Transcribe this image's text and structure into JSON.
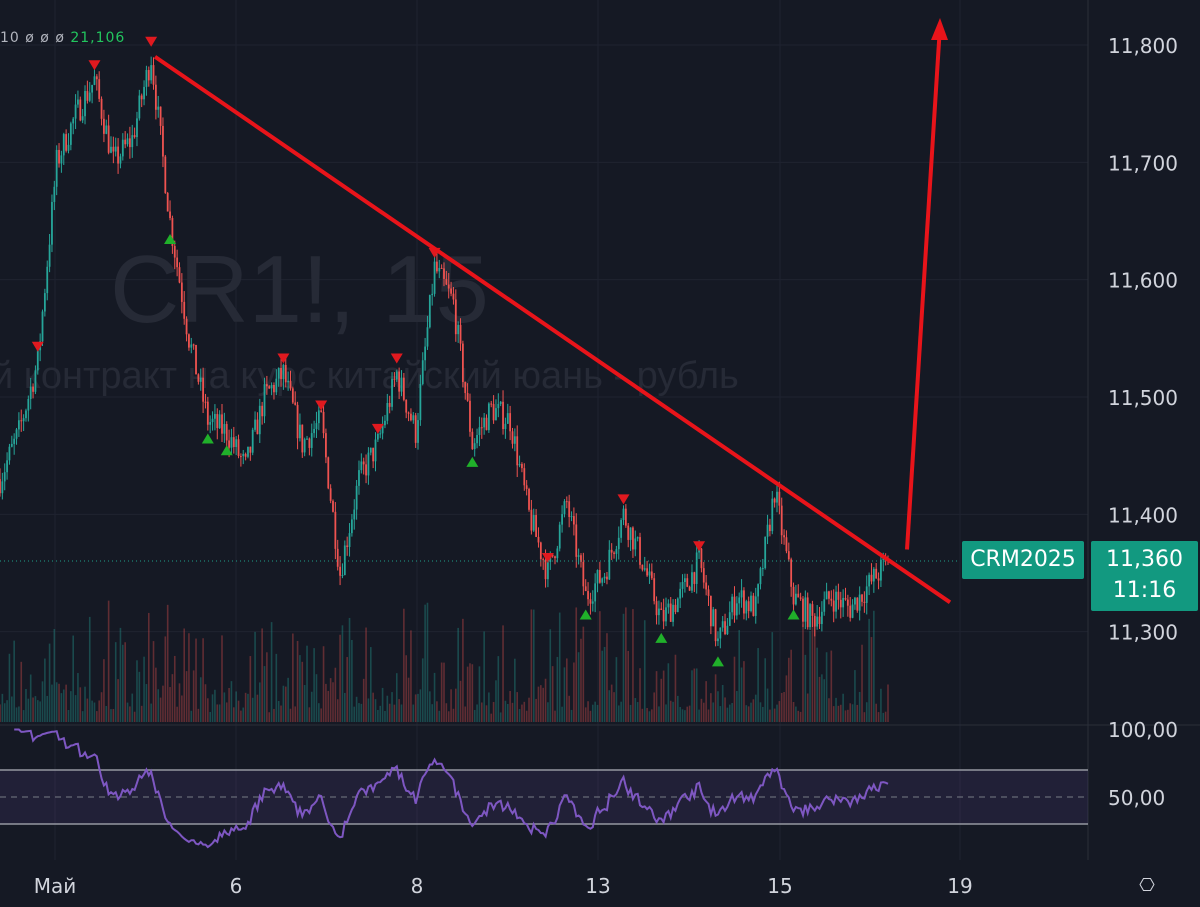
{
  "legend": {
    "prefix": "10",
    "null_values": "ø ø ø",
    "volume": "21,106"
  },
  "watermark": {
    "symbol": "CR1!, 15",
    "description": "й контракт на курс китайский юань - рубль"
  },
  "last_price": {
    "symbol": "CRM2025",
    "price": "11,360",
    "countdown": "11:16"
  },
  "colors": {
    "background": "#151924",
    "up": "#26a69a",
    "down": "#ef5350",
    "annotation": "#e8141a",
    "rsi": "#7e57c2",
    "badge": "#129980"
  },
  "icons": {
    "settings": "gear-icon"
  },
  "chart_data": [
    {
      "type": "candlestick",
      "price_axis": {
        "ticks": [
          "11,800",
          "11,700",
          "11,600",
          "11,500",
          "11,400",
          "11,300"
        ],
        "tick_values": [
          11800,
          11700,
          11600,
          11500,
          11400,
          11300
        ]
      },
      "time_axis": {
        "ticks": [
          "Май",
          "6",
          "8",
          "13",
          "15",
          "19"
        ]
      },
      "grid": true,
      "close_keypoints": [
        11430,
        11470,
        11530,
        11700,
        11740,
        11770,
        11700,
        11720,
        11790,
        11650,
        11550,
        11480,
        11470,
        11440,
        11500,
        11520,
        11460,
        11480,
        11350,
        11430,
        11460,
        11520,
        11470,
        11610,
        11580,
        11460,
        11490,
        11480,
        11400,
        11350,
        11410,
        11330,
        11350,
        11400,
        11360,
        11310,
        11330,
        11360,
        11290,
        11330,
        11320,
        11420,
        11330,
        11310,
        11330,
        11320,
        11340,
        11360
      ],
      "last_value": 11360,
      "signals": [
        {
          "k": 2,
          "type": "sell"
        },
        {
          "k": 5,
          "type": "sell"
        },
        {
          "k": 8,
          "type": "sell"
        },
        {
          "k": 9,
          "type": "buy"
        },
        {
          "k": 11,
          "type": "buy"
        },
        {
          "k": 12,
          "type": "buy"
        },
        {
          "k": 15,
          "type": "sell"
        },
        {
          "k": 17,
          "type": "sell"
        },
        {
          "k": 20,
          "type": "sell"
        },
        {
          "k": 21,
          "type": "sell"
        },
        {
          "k": 23,
          "type": "sell"
        },
        {
          "k": 25,
          "type": "buy"
        },
        {
          "k": 29,
          "type": "sell"
        },
        {
          "k": 31,
          "type": "buy"
        },
        {
          "k": 33,
          "type": "sell"
        },
        {
          "k": 35,
          "type": "buy"
        },
        {
          "k": 37,
          "type": "sell"
        },
        {
          "k": 38,
          "type": "buy"
        },
        {
          "k": 42,
          "type": "buy"
        }
      ],
      "annotations": [
        {
          "type": "trendline",
          "from_price": 11790,
          "to_price": 11325
        },
        {
          "type": "arrow",
          "from_price": 11370,
          "to_price": 11830
        }
      ]
    },
    {
      "type": "volume",
      "legend_value": "21,106"
    },
    {
      "type": "line",
      "axis": {
        "ticks": [
          "100,00",
          "50,00"
        ],
        "tick_values": [
          100,
          50
        ]
      },
      "bands": [
        30,
        70
      ],
      "midline": 50,
      "ylim": [
        0,
        100
      ]
    }
  ]
}
